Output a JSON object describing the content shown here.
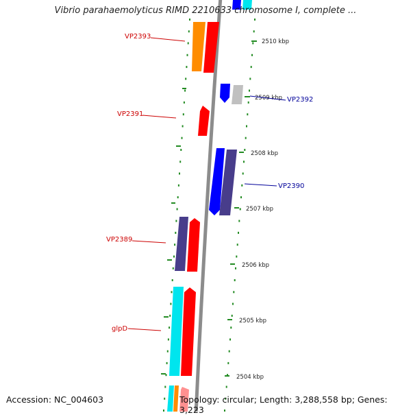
{
  "map": {
    "title": "Vibrio parahaemolyticus RIMD 2210633 chromosome I, complete ...",
    "accession_label": "Accession: NC_004603",
    "topology_label": "Topology: circular; Length: 3,288,558 bp; Genes: 3,223"
  },
  "ticks": [
    {
      "label": "2510 kbp"
    },
    {
      "label": "2509 kbp"
    },
    {
      "label": "2508 kbp"
    },
    {
      "label": "2507 kbp"
    },
    {
      "label": "2506 kbp"
    },
    {
      "label": "2505 kbp"
    },
    {
      "label": "2504 kbp"
    }
  ],
  "gene_labels": [
    {
      "text": "VP2393",
      "color": "#cc0000"
    },
    {
      "text": "VP2391",
      "color": "#cc0000"
    },
    {
      "text": "VP2392",
      "color": "#000099"
    },
    {
      "text": "VP2390",
      "color": "#000099"
    },
    {
      "text": "VP2389",
      "color": "#cc0000"
    },
    {
      "text": "glpD",
      "color": "#cc0000"
    }
  ],
  "colors": {
    "backbone": "#8c8c8c",
    "tick_green": "#228b22",
    "red": "#ff0000",
    "orange": "#ff8c00",
    "blue": "#0000ff",
    "slate": "#483d8b",
    "cyan": "#00e5ee",
    "gray": "#c0c0c0"
  }
}
